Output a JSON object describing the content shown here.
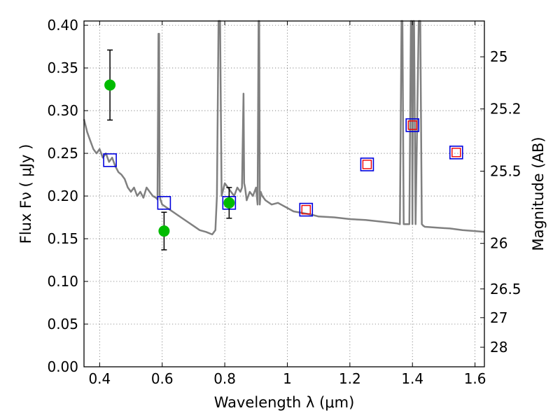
{
  "chart_data": {
    "type": "scatter",
    "xlabel": "Wavelength  λ (μm)",
    "ylabel": "Flux  Fν  ( μJy )",
    "y2label": "Magnitude (AB)",
    "xlim": [
      0.35,
      1.63
    ],
    "ylim": [
      0.0,
      0.405
    ],
    "x_ticks": [
      0.4,
      0.6,
      0.8,
      1.0,
      1.2,
      1.4,
      1.6
    ],
    "x_tick_labels": [
      "0.4",
      "0.6",
      "0.8",
      "1",
      "1.2",
      "1.4",
      "1.6"
    ],
    "y_ticks": [
      0.0,
      0.05,
      0.1,
      0.15,
      0.2,
      0.25,
      0.3,
      0.35,
      0.4
    ],
    "y_tick_labels": [
      "0.00",
      "0.05",
      "0.10",
      "0.15",
      "0.20",
      "0.25",
      "0.30",
      "0.35",
      "0.40"
    ],
    "y2_ticks": [
      25,
      25.2,
      25.5,
      26,
      26.5,
      27,
      28
    ],
    "y2_tick_labels": [
      "25",
      "25.2",
      "25.5",
      "26",
      "26.5",
      "27",
      "28"
    ],
    "grid": true,
    "colors": {
      "model": "#808080",
      "observed": "#00bb00",
      "error_bar": "#000000",
      "blue_box": "#0000dd",
      "red_box": "#ee0000"
    },
    "series": [
      {
        "name": "model spectrum",
        "kind": "line",
        "x": [
          0.35,
          0.36,
          0.37,
          0.38,
          0.39,
          0.4,
          0.41,
          0.42,
          0.43,
          0.44,
          0.45,
          0.46,
          0.47,
          0.48,
          0.49,
          0.5,
          0.51,
          0.52,
          0.53,
          0.54,
          0.55,
          0.56,
          0.57,
          0.58,
          0.585,
          0.588,
          0.59,
          0.592,
          0.595,
          0.6,
          0.62,
          0.64,
          0.66,
          0.68,
          0.7,
          0.72,
          0.74,
          0.76,
          0.77,
          0.775,
          0.78,
          0.785,
          0.79,
          0.8,
          0.81,
          0.82,
          0.83,
          0.84,
          0.85,
          0.855,
          0.86,
          0.862,
          0.865,
          0.87,
          0.88,
          0.89,
          0.9,
          0.905,
          0.908,
          0.91,
          0.912,
          0.915,
          0.92,
          0.93,
          0.95,
          0.97,
          1.0,
          1.02,
          1.05,
          1.08,
          1.1,
          1.15,
          1.2,
          1.25,
          1.3,
          1.35,
          1.36,
          1.365,
          1.368,
          1.372,
          1.38,
          1.39,
          1.395,
          1.398,
          1.4,
          1.402,
          1.405,
          1.41,
          1.42,
          1.425,
          1.43,
          1.435,
          1.44,
          1.48,
          1.52,
          1.56,
          1.6,
          1.63
        ],
        "y": [
          0.29,
          0.275,
          0.265,
          0.255,
          0.25,
          0.255,
          0.245,
          0.25,
          0.24,
          0.245,
          0.235,
          0.228,
          0.225,
          0.22,
          0.21,
          0.205,
          0.21,
          0.2,
          0.205,
          0.198,
          0.21,
          0.205,
          0.2,
          0.198,
          0.196,
          0.39,
          0.39,
          0.2,
          0.195,
          0.19,
          0.185,
          0.18,
          0.175,
          0.17,
          0.165,
          0.16,
          0.158,
          0.155,
          0.16,
          0.2,
          0.41,
          0.41,
          0.2,
          0.215,
          0.21,
          0.205,
          0.2,
          0.21,
          0.205,
          0.21,
          0.32,
          0.215,
          0.21,
          0.195,
          0.205,
          0.2,
          0.21,
          0.19,
          0.41,
          0.41,
          0.19,
          0.205,
          0.2,
          0.195,
          0.19,
          0.192,
          0.186,
          0.182,
          0.18,
          0.178,
          0.176,
          0.175,
          0.173,
          0.172,
          0.17,
          0.168,
          0.167,
          0.41,
          0.41,
          0.167,
          0.167,
          0.167,
          0.41,
          0.41,
          0.167,
          0.41,
          0.41,
          0.167,
          0.41,
          0.41,
          0.167,
          0.165,
          0.164,
          0.163,
          0.162,
          0.16,
          0.159,
          0.158
        ]
      },
      {
        "name": "observed photometry",
        "kind": "errorbar",
        "x": [
          0.433,
          0.606,
          0.814
        ],
        "y": [
          0.33,
          0.159,
          0.192
        ],
        "yerr": [
          0.041,
          0.022,
          0.018
        ]
      },
      {
        "name": "model synthetic photometry",
        "kind": "open-square",
        "x": [
          0.433,
          0.606,
          0.814,
          1.06,
          1.255,
          1.4,
          1.54
        ],
        "y": [
          0.242,
          0.192,
          0.192,
          0.184,
          0.237,
          0.283,
          0.251
        ]
      },
      {
        "name": "model photometry (NIR)",
        "kind": "open-square-small",
        "x": [
          1.06,
          1.255,
          1.4,
          1.54
        ],
        "y": [
          0.184,
          0.237,
          0.283,
          0.251
        ]
      }
    ]
  }
}
